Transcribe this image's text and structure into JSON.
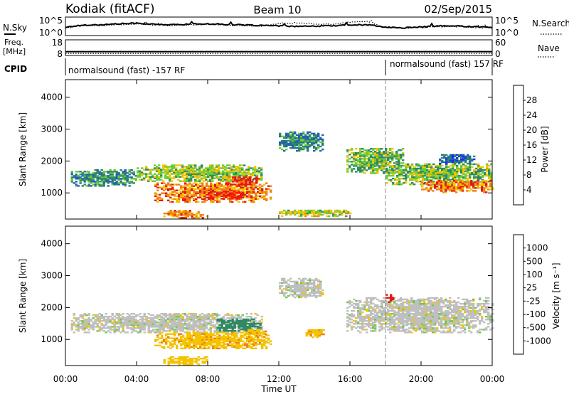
{
  "header": {
    "station": "Kodiak (fitACF)",
    "beam": "Beam 10",
    "date": "02/Sep/2015"
  },
  "chart_data": [
    {
      "type": "line",
      "panel": "noise",
      "left_label": "N.Sky",
      "right_label": "N.Search",
      "left_ticks": [
        "10^5",
        "10^0"
      ],
      "right_ticks": [
        "10^5",
        "10^0"
      ],
      "series": [
        {
          "style": "solid",
          "x": [
            0,
            1,
            2,
            3,
            4,
            5,
            6,
            7,
            8,
            9,
            10,
            11,
            12,
            13,
            14,
            15,
            16,
            17,
            18,
            19,
            20,
            21,
            22,
            23,
            24
          ],
          "values": [
            2.2,
            2.9,
            3.0,
            3.3,
            3.5,
            3.1,
            3.0,
            3.2,
            3.3,
            3.1,
            2.9,
            2.8,
            2.6,
            2.5,
            2.5,
            2.7,
            2.9,
            3.0,
            2.2,
            2.0,
            2.3,
            2.6,
            2.6,
            2.4,
            2.1
          ]
        },
        {
          "style": "dotted",
          "x": [
            0,
            1,
            2,
            3,
            4,
            5,
            6,
            7,
            8,
            9,
            10,
            11,
            12,
            13,
            14,
            15,
            16,
            17,
            18,
            19,
            20,
            21,
            22,
            23,
            24
          ],
          "values": [
            2.0,
            2.7,
            2.8,
            3.1,
            3.3,
            2.9,
            2.8,
            3.0,
            3.1,
            2.9,
            2.7,
            2.6,
            3.4,
            3.6,
            3.3,
            3.1,
            3.9,
            4.0,
            2.0,
            1.9,
            2.1,
            2.4,
            2.4,
            2.2,
            1.9
          ]
        }
      ]
    },
    {
      "type": "line",
      "panel": "frequency",
      "left_label_line1": "Freq.",
      "left_label_line2": "[MHz]",
      "right_label": "Nave",
      "left_ticks": [
        "18",
        "8"
      ],
      "right_ticks": [
        "60",
        "0"
      ],
      "series": [
        {
          "style": "solid",
          "values": [
            10.3,
            10.3
          ]
        },
        {
          "style": "dotted",
          "values": [
            9.0,
            9.0
          ]
        }
      ]
    },
    {
      "type": "table",
      "panel": "cpid",
      "label": "CPID",
      "segments": [
        {
          "start_hour": 0,
          "end_hour": 18,
          "text": "normalsound (fast) -157 RF"
        },
        {
          "start_hour": 18,
          "end_hour": 24,
          "text": "normalsound (fast) 157 RF"
        }
      ]
    },
    {
      "type": "heatmap",
      "panel": "power",
      "ylabel": "Slant Range [km]",
      "ylim": [
        180,
        4550
      ],
      "yticks": [
        "1000",
        "2000",
        "3000",
        "4000"
      ],
      "colorbar_label": "Power [dB]",
      "colorbar_ticks": [
        "4",
        "8",
        "12",
        "16",
        "20",
        "24",
        "28"
      ],
      "colorbar_colors": [
        "#1b2cf0",
        "#2460b4",
        "#2f8a65",
        "#6acb3c",
        "#f3c300",
        "#f08018",
        "#e01a12",
        "#ff1010"
      ],
      "echo_regions": [
        {
          "x0": 0.3,
          "x1": 4.0,
          "y0": 1200,
          "y1": 1700,
          "value": 10
        },
        {
          "x0": 4.0,
          "x1": 11.0,
          "y0": 1350,
          "y1": 1850,
          "value": 15
        },
        {
          "x0": 5.0,
          "x1": 11.5,
          "y0": 700,
          "y1": 1300,
          "value": 22
        },
        {
          "x0": 8.0,
          "x1": 10.0,
          "y0": 800,
          "y1": 1050,
          "value": 27
        },
        {
          "x0": 9.0,
          "x1": 10.8,
          "y0": 1200,
          "y1": 1500,
          "value": 25
        },
        {
          "x0": 5.5,
          "x1": 8.0,
          "y0": 200,
          "y1": 450,
          "value": 22
        },
        {
          "x0": 12.0,
          "x1": 16.0,
          "y0": 250,
          "y1": 450,
          "value": 16
        },
        {
          "x0": 12.0,
          "x1": 14.5,
          "y0": 2300,
          "y1": 2900,
          "value": 9
        },
        {
          "x0": 15.8,
          "x1": 19.0,
          "y0": 1600,
          "y1": 2400,
          "value": 13
        },
        {
          "x0": 18.0,
          "x1": 24.0,
          "y0": 1250,
          "y1": 1900,
          "value": 14
        },
        {
          "x0": 20.0,
          "x1": 24.0,
          "y0": 1000,
          "y1": 1400,
          "value": 22
        },
        {
          "x0": 21.0,
          "x1": 23.0,
          "y0": 1900,
          "y1": 2200,
          "value": 7
        }
      ]
    },
    {
      "type": "heatmap",
      "panel": "velocity",
      "ylabel": "Slant Range [km]",
      "ylim": [
        180,
        4550
      ],
      "yticks": [
        "1000",
        "2000",
        "3000",
        "4000"
      ],
      "colorbar_label": "Velocity [m s⁻¹]",
      "colorbar_ticks": [
        "1000",
        "500",
        "100",
        "25",
        "-25",
        "-100",
        "-500",
        "-1000"
      ],
      "colorbar_colors": [
        "#1b2cf0",
        "#2460b4",
        "#2f8a65",
        "#6acb3c",
        "#bfbfbf",
        "#f3c300",
        "#f08018",
        "#e01a12",
        "#ff1010"
      ],
      "echo_regions": [
        {
          "x0": 0.3,
          "x1": 11.0,
          "y0": 1200,
          "y1": 1800,
          "value": 0
        },
        {
          "x0": 5.0,
          "x1": 11.5,
          "y0": 700,
          "y1": 1200,
          "value": -80
        },
        {
          "x0": 8.5,
          "x1": 11.0,
          "y0": 1250,
          "y1": 1650,
          "value": 150
        },
        {
          "x0": 10.0,
          "x1": 11.2,
          "y0": 1100,
          "y1": 1300,
          "value": -80
        },
        {
          "x0": 13.5,
          "x1": 14.5,
          "y0": 1050,
          "y1": 1300,
          "value": -80
        },
        {
          "x0": 5.5,
          "x1": 8.0,
          "y0": 200,
          "y1": 450,
          "value": -60
        },
        {
          "x0": 12.0,
          "x1": 14.5,
          "y0": 2300,
          "y1": 2900,
          "value": 0
        },
        {
          "x0": 15.8,
          "x1": 24.0,
          "y0": 1200,
          "y1": 2300,
          "value": 0
        },
        {
          "x0": 18.0,
          "x1": 18.4,
          "y0": 2150,
          "y1": 2400,
          "value": -700
        }
      ]
    }
  ],
  "xaxis": {
    "label": "Time UT",
    "ticks": [
      "00:00",
      "04:00",
      "08:00",
      "12:00",
      "16:00",
      "20:00",
      "00:00"
    ]
  }
}
